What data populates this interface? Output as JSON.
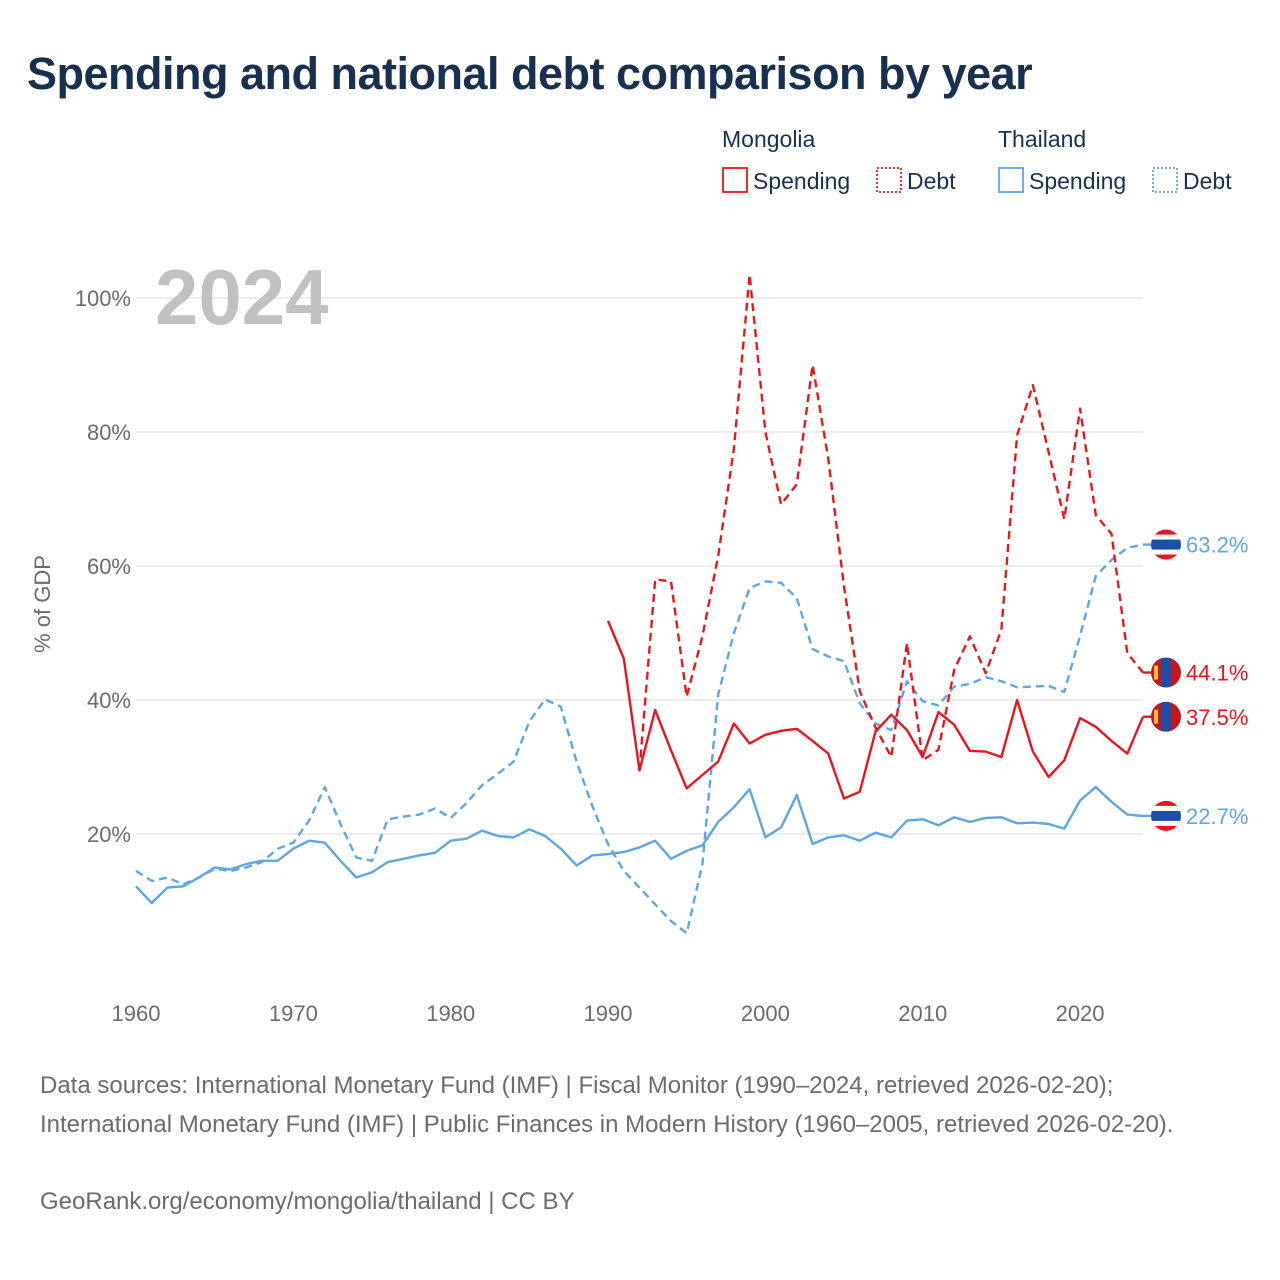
{
  "title": "Spending and national debt comparison by year",
  "year_label": "2024",
  "sources": "Data sources: International Monetary Fund (IMF) | Fiscal Monitor (1990–2024, retrieved 2026-02-20); International Monetary Fund (IMF) | Public Finances in Modern History (1960–2005, retrieved 2026-02-20).",
  "credit": "GeoRank.org/economy/mongolia/thailand | CC BY",
  "legend": {
    "groups": [
      {
        "name": "Mongolia",
        "color": "#e8161c",
        "items": [
          {
            "label": "Spending",
            "style": "solid"
          },
          {
            "label": "Debt",
            "style": "dotted"
          }
        ]
      },
      {
        "name": "Thailand",
        "color": "#5ea5e6",
        "items": [
          {
            "label": "Spending",
            "style": "solid"
          },
          {
            "label": "Debt",
            "style": "dotted"
          }
        ]
      }
    ]
  },
  "chart_data": {
    "type": "line",
    "title": "Spending and national debt comparison by year",
    "xlabel": "",
    "ylabel": "% of GDP",
    "xlim": [
      1960,
      2024
    ],
    "ylim": [
      0,
      100
    ],
    "x_ticks": [
      1960,
      1970,
      1980,
      1990,
      2000,
      2010,
      2020
    ],
    "y_ticks": [
      20,
      40,
      60,
      80,
      100
    ],
    "y_tick_labels": [
      "20%",
      "40%",
      "60%",
      "80%",
      "100%"
    ],
    "grid": true,
    "series": [
      {
        "name": "Thailand Debt",
        "country": "Thailand",
        "metric": "Debt",
        "color": "#5ea5e6",
        "dash": "dashed",
        "start_year": 1960,
        "values": [
          14.5,
          13.0,
          13.5,
          12.5,
          13.5,
          14.8,
          14.5,
          15.0,
          15.8,
          17.8,
          18.7,
          22.0,
          27.0,
          21.5,
          16.5,
          16.0,
          22.2,
          22.6,
          22.9,
          23.8,
          22.4,
          24.6,
          27.3,
          29.0,
          30.8,
          36.8,
          40.1,
          39.0,
          30.8,
          24.2,
          18.5,
          14.5,
          12.0,
          9.5,
          7.0,
          5.2,
          15.5,
          40.8,
          50.0,
          56.7,
          57.7,
          57.5,
          55.2,
          47.6,
          46.5,
          45.8,
          39.5,
          36.5,
          35.5,
          42.8,
          39.8,
          39.2,
          42.0,
          42.4,
          43.4,
          42.8,
          41.9,
          42.0,
          42.1,
          41.2,
          49.6,
          58.5,
          60.9,
          62.7,
          63.2
        ],
        "end_label": "63.2%",
        "flag": "thailand"
      },
      {
        "name": "Thailand Spending",
        "country": "Thailand",
        "metric": "Spending",
        "color": "#5ea5e6",
        "dash": "solid",
        "start_year": 1960,
        "values": [
          12.2,
          9.7,
          12.0,
          12.2,
          13.5,
          15.0,
          14.7,
          15.5,
          16.0,
          16.0,
          17.8,
          19.0,
          18.7,
          16.0,
          13.5,
          14.3,
          15.8,
          16.3,
          16.8,
          17.2,
          19.0,
          19.3,
          20.5,
          19.7,
          19.5,
          20.7,
          19.7,
          17.8,
          15.3,
          16.8,
          17.0,
          17.3,
          18.0,
          19.0,
          16.3,
          17.5,
          18.3,
          21.8,
          24.0,
          26.7,
          19.5,
          21.0,
          25.8,
          18.5,
          19.5,
          19.8,
          19.0,
          20.2,
          19.5,
          22.0,
          22.2,
          21.3,
          22.5,
          21.8,
          22.4,
          22.5,
          21.6,
          21.7,
          21.5,
          20.8,
          25.0,
          27.0,
          24.8,
          22.9,
          22.7
        ],
        "end_label": "22.7%",
        "flag": "thailand"
      },
      {
        "name": "Mongolia Debt",
        "country": "Mongolia",
        "metric": "Debt",
        "color": "#e8161c",
        "dash": "dashed",
        "start_year": 1992,
        "values": [
          29.5,
          58.0,
          57.7,
          40.5,
          49.5,
          61.5,
          77.5,
          103.5,
          80.0,
          69.2,
          72.2,
          90.0,
          76.0,
          57.0,
          41.3,
          35.9,
          31.5,
          48.5,
          31.0,
          32.6,
          44.5,
          49.5,
          44.0,
          50.5,
          79.5,
          87.0,
          77.0,
          67.0,
          83.5,
          67.6,
          64.8,
          47.0,
          44.1
        ],
        "end_label": "44.1%",
        "flag": "mongolia"
      },
      {
        "name": "Mongolia Spending",
        "country": "Mongolia",
        "metric": "Spending",
        "color": "#e8161c",
        "dash": "solid",
        "start_year": 1990,
        "values": [
          51.8,
          46.2,
          29.5,
          38.5,
          32.5,
          26.8,
          28.8,
          30.8,
          36.5,
          33.5,
          34.8,
          35.4,
          35.7,
          33.9,
          32.0,
          25.3,
          26.3,
          35.3,
          37.8,
          35.5,
          31.5,
          38.2,
          36.3,
          32.4,
          32.3,
          31.5,
          40.0,
          32.3,
          28.5,
          31.0,
          37.3,
          36.0,
          33.9,
          32.0,
          37.5
        ],
        "end_label": "37.5%",
        "flag": "mongolia"
      }
    ]
  }
}
